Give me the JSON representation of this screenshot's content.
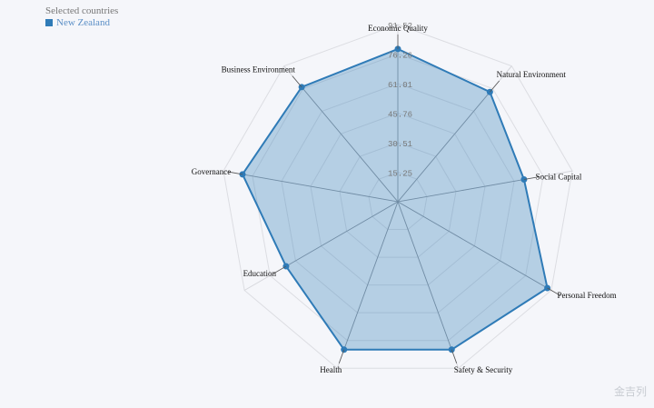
{
  "legend": {
    "title": "Selected countries",
    "items": [
      {
        "label": "New Zealand",
        "color": "#2f7bb7"
      }
    ]
  },
  "chart_data": {
    "type": "radar",
    "axes": [
      "Economic Quality",
      "Natural Environment",
      "Social Capital",
      "Personal Freedom",
      "Safety & Security",
      "Health",
      "Education",
      "Governance",
      "Business Environment"
    ],
    "ticks": [
      "15.25",
      "30.51",
      "45.76",
      "61.01",
      "76.26",
      "91.52"
    ],
    "max": 91.52,
    "grid": true,
    "legend_position": "top-left",
    "series": [
      {
        "name": "New Zealand",
        "values": [
          78.9,
          74.0,
          66.2,
          89.2,
          81.3,
          81.3,
          66.7,
          81.5,
          77.3
        ],
        "color": "#2f7bb7"
      }
    ]
  },
  "watermark": "金吉列"
}
